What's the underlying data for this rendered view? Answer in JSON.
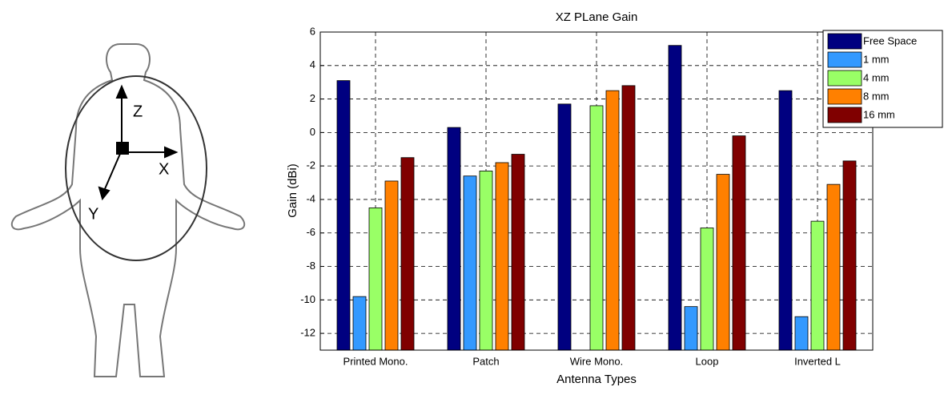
{
  "diagram": {
    "axis_labels": [
      "Z",
      "X",
      "Y"
    ]
  },
  "chart_data": {
    "type": "bar",
    "title": "XZ PLane Gain",
    "x_label": "Antenna Types",
    "y_label": "Gain (dBi)",
    "categories": [
      "Printed Mono.",
      "Patch",
      "Wire Mono.",
      "Loop",
      "Inverted L"
    ],
    "series": [
      {
        "name": "Free Space",
        "color": "#000080",
        "values": [
          3.1,
          0.3,
          1.7,
          5.2,
          2.5
        ]
      },
      {
        "name": "1 mm",
        "color": "#3399ff",
        "values": [
          -9.8,
          -2.6,
          null,
          -10.4,
          -11.0
        ]
      },
      {
        "name": "4 mm",
        "color": "#99ff66",
        "values": [
          -4.5,
          -2.3,
          1.6,
          -5.7,
          -5.3
        ]
      },
      {
        "name": "8 mm",
        "color": "#ff8000",
        "values": [
          -2.9,
          -1.8,
          2.5,
          -2.5,
          -3.1
        ]
      },
      {
        "name": "16 mm",
        "color": "#800000",
        "values": [
          -1.5,
          -1.3,
          2.8,
          -0.2,
          -1.7
        ]
      }
    ],
    "ylim": [
      -13,
      6
    ],
    "yticks": [
      -12,
      -10,
      -8,
      -6,
      -4,
      -2,
      0,
      2,
      4,
      6
    ],
    "grid": true,
    "legend": "top-right"
  }
}
